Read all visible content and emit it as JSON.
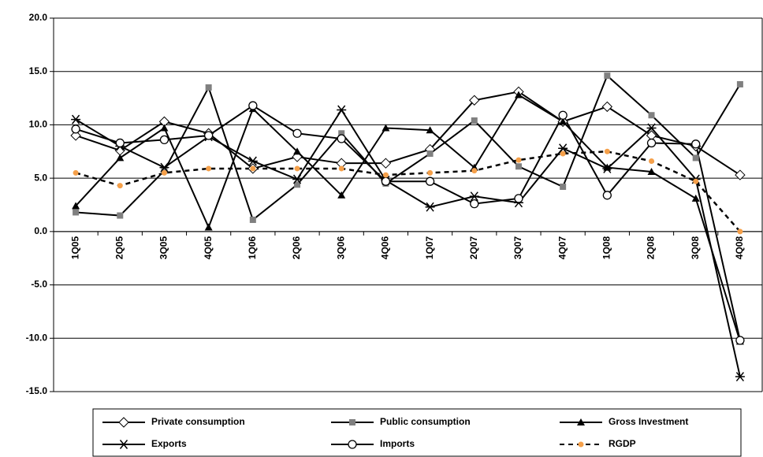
{
  "chart_data": {
    "type": "line",
    "categories": [
      "1Q05",
      "2Q05",
      "3Q05",
      "4Q05",
      "1Q06",
      "2Q06",
      "3Q06",
      "4Q06",
      "1Q07",
      "2Q07",
      "3Q07",
      "4Q07",
      "1Q08",
      "2Q08",
      "3Q08",
      "4Q08"
    ],
    "ylim": [
      -15,
      20
    ],
    "yticks": [
      {
        "value": -15,
        "label": "-15.0"
      },
      {
        "value": -10,
        "label": "-10.0"
      },
      {
        "value": -5,
        "label": "-5.0"
      },
      {
        "value": 0,
        "label": "0.0"
      },
      {
        "value": 5,
        "label": "5.0"
      },
      {
        "value": 10,
        "label": "10.0"
      },
      {
        "value": 15,
        "label": "15.0"
      },
      {
        "value": 20,
        "label": "20.0"
      }
    ],
    "grid": true,
    "legend": "bottom",
    "series": [
      {
        "name": "Private consumption",
        "color": "#000000",
        "marker": "diamond",
        "marker_color": "#ffffff",
        "line_style": "solid",
        "values": [
          9.0,
          7.6,
          10.3,
          9.2,
          5.9,
          7.0,
          6.4,
          6.4,
          7.7,
          12.3,
          13.1,
          10.3,
          11.7,
          9.0,
          8.0,
          5.3
        ]
      },
      {
        "name": "Public consumption",
        "color": "#000000",
        "marker": "square",
        "marker_color": "#808080",
        "line_style": "solid",
        "values": [
          1.8,
          1.5,
          5.7,
          13.5,
          1.1,
          4.4,
          9.2,
          4.5,
          7.3,
          10.4,
          6.1,
          4.2,
          14.6,
          10.9,
          6.9,
          13.8
        ]
      },
      {
        "name": "Gross Investment",
        "color": "#000000",
        "marker": "triangle",
        "marker_color": "#000000",
        "line_style": "solid",
        "values": [
          2.4,
          6.9,
          9.7,
          0.4,
          11.5,
          7.5,
          3.4,
          9.7,
          9.5,
          6.0,
          12.8,
          10.3,
          6.0,
          5.6,
          3.1,
          -10.3
        ]
      },
      {
        "name": "Exports",
        "color": "#000000",
        "marker": "star",
        "marker_color": "#000000",
        "line_style": "solid",
        "values": [
          10.5,
          8.0,
          6.0,
          8.9,
          6.6,
          4.9,
          11.4,
          4.8,
          2.3,
          3.3,
          2.7,
          7.8,
          5.9,
          9.7,
          4.9,
          -13.6
        ]
      },
      {
        "name": "Imports",
        "color": "#000000",
        "marker": "circle",
        "marker_color": "#ffffff",
        "line_style": "solid",
        "values": [
          9.6,
          8.3,
          8.6,
          9.0,
          11.8,
          9.2,
          8.7,
          4.7,
          4.7,
          2.6,
          3.1,
          10.9,
          3.4,
          8.3,
          8.2,
          -10.2
        ]
      },
      {
        "name": "RGDP",
        "color": "#000000",
        "marker": "dot",
        "marker_color": "#f5a04a",
        "line_style": "dashed",
        "values": [
          5.5,
          4.3,
          5.5,
          5.9,
          5.9,
          5.9,
          5.9,
          5.3,
          5.5,
          5.7,
          6.7,
          7.3,
          7.5,
          6.6,
          4.7,
          0.0
        ]
      }
    ]
  }
}
